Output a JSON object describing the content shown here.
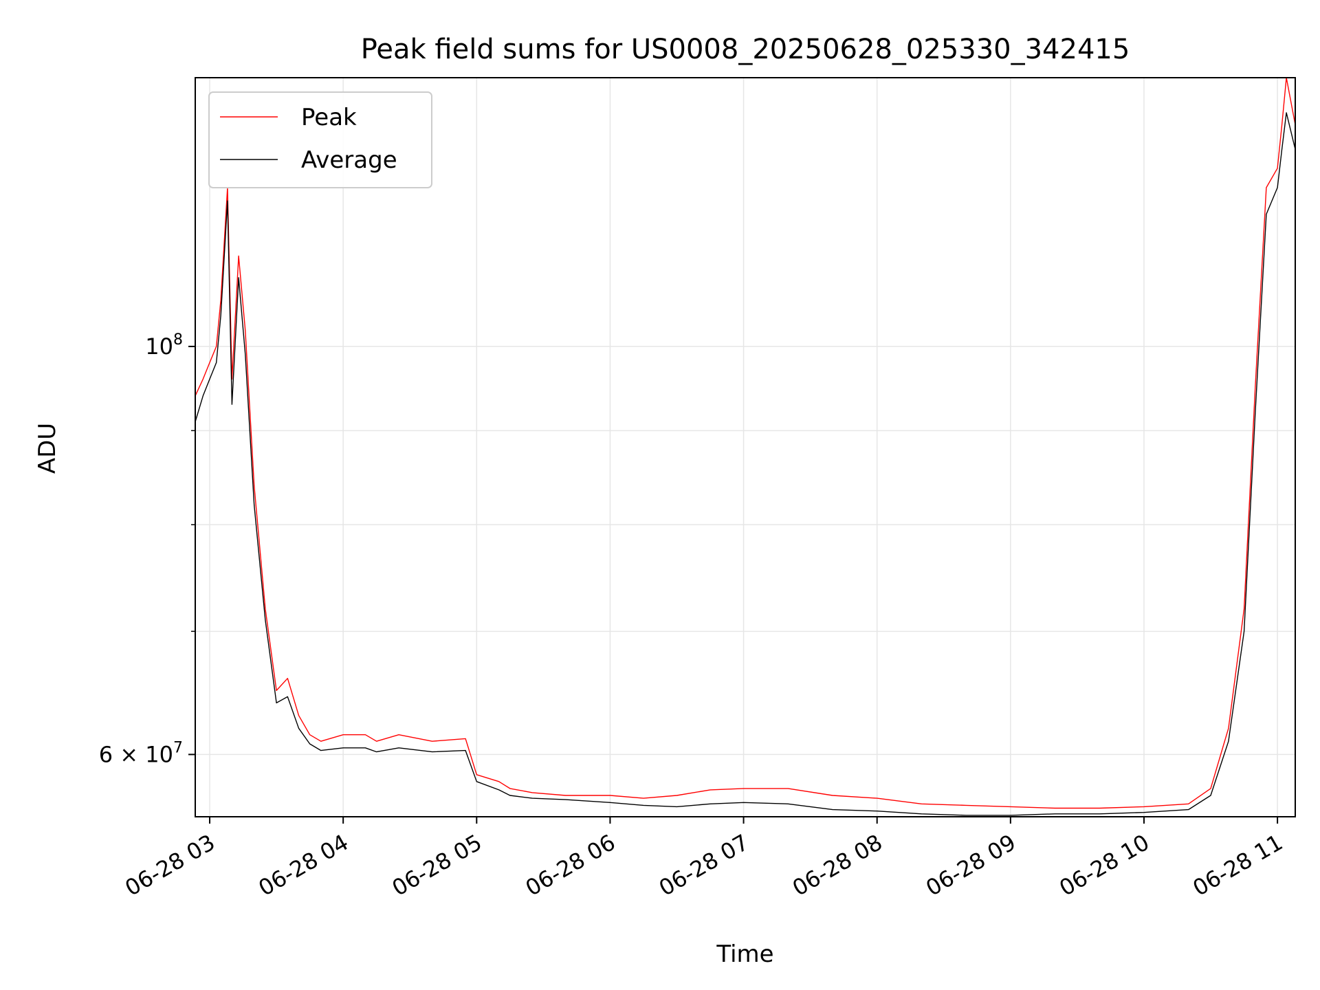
{
  "chart_data": {
    "type": "line",
    "title": "Peak field sums for US0008_20250628_025330_342415",
    "xlabel": "Time",
    "ylabel": "ADU",
    "yscale": "log",
    "ylim": [
      55500000,
      140000000
    ],
    "xlim": [
      "2025-06-28T02:53:30",
      "2025-06-28T11:08:00"
    ],
    "xticks": [
      {
        "t": "2025-06-28T03:00",
        "label": "06-28 03"
      },
      {
        "t": "2025-06-28T04:00",
        "label": "06-28 04"
      },
      {
        "t": "2025-06-28T05:00",
        "label": "06-28 05"
      },
      {
        "t": "2025-06-28T06:00",
        "label": "06-28 06"
      },
      {
        "t": "2025-06-28T07:00",
        "label": "06-28 07"
      },
      {
        "t": "2025-06-28T08:00",
        "label": "06-28 08"
      },
      {
        "t": "2025-06-28T09:00",
        "label": "06-28 09"
      },
      {
        "t": "2025-06-28T10:00",
        "label": "06-28 10"
      },
      {
        "t": "2025-06-28T11:00",
        "label": "06-28 11"
      }
    ],
    "yticks_major": [
      {
        "v": 60000000,
        "label": "6 × 10^7",
        "mantissa": "6 × 10",
        "exp": "7"
      },
      {
        "v": 100000000,
        "label": "10^8",
        "mantissa": "10",
        "exp": "8"
      }
    ],
    "yticks_minor": [
      70000000,
      80000000,
      90000000
    ],
    "grid": true,
    "legend_position": "top-left",
    "series": [
      {
        "name": "Peak",
        "color": "#ff0000",
        "x": [
          "2025-06-28T02:53:30",
          "2025-06-28T02:57:00",
          "2025-06-28T03:00:00",
          "2025-06-28T03:03:00",
          "2025-06-28T03:05:00",
          "2025-06-28T03:08:00",
          "2025-06-28T03:10:00",
          "2025-06-28T03:13:00",
          "2025-06-28T03:16:00",
          "2025-06-28T03:20:00",
          "2025-06-28T03:25:00",
          "2025-06-28T03:30:00",
          "2025-06-28T03:35:00",
          "2025-06-28T03:40:00",
          "2025-06-28T03:45:00",
          "2025-06-28T03:50:00",
          "2025-06-28T04:00:00",
          "2025-06-28T04:10:00",
          "2025-06-28T04:15:00",
          "2025-06-28T04:25:00",
          "2025-06-28T04:40:00",
          "2025-06-28T04:55:00",
          "2025-06-28T05:00:00",
          "2025-06-28T05:10:00",
          "2025-06-28T05:15:00",
          "2025-06-28T05:25:00",
          "2025-06-28T05:40:00",
          "2025-06-28T06:00:00",
          "2025-06-28T06:15:00",
          "2025-06-28T06:30:00",
          "2025-06-28T06:45:00",
          "2025-06-28T07:00:00",
          "2025-06-28T07:20:00",
          "2025-06-28T07:40:00",
          "2025-06-28T08:00:00",
          "2025-06-28T08:20:00",
          "2025-06-28T08:40:00",
          "2025-06-28T09:00:00",
          "2025-06-28T09:20:00",
          "2025-06-28T09:40:00",
          "2025-06-28T10:00:00",
          "2025-06-28T10:20:00",
          "2025-06-28T10:30:00",
          "2025-06-28T10:38:00",
          "2025-06-28T10:45:00",
          "2025-06-28T10:50:00",
          "2025-06-28T10:55:00",
          "2025-06-28T11:00:00",
          "2025-06-28T11:02:00",
          "2025-06-28T11:04:00",
          "2025-06-28T11:08:00"
        ],
        "values": [
          94000000,
          96000000,
          98000000,
          100000000,
          106000000,
          122000000,
          96000000,
          112000000,
          102000000,
          84000000,
          72000000,
          65000000,
          66000000,
          63000000,
          61500000,
          61000000,
          61500000,
          61500000,
          61000000,
          61500000,
          61000000,
          61200000,
          58500000,
          58000000,
          57500000,
          57200000,
          57000000,
          57000000,
          56800000,
          57000000,
          57400000,
          57500000,
          57500000,
          57000000,
          56800000,
          56400000,
          56300000,
          56200000,
          56100000,
          56100000,
          56200000,
          56400000,
          57500000,
          62000000,
          72000000,
          95000000,
          122000000,
          125000000,
          132000000,
          140000000,
          132000000
        ]
      },
      {
        "name": "Average",
        "color": "#000000",
        "x": [
          "2025-06-28T02:53:30",
          "2025-06-28T02:57:00",
          "2025-06-28T03:00:00",
          "2025-06-28T03:03:00",
          "2025-06-28T03:05:00",
          "2025-06-28T03:08:00",
          "2025-06-28T03:10:00",
          "2025-06-28T03:13:00",
          "2025-06-28T03:16:00",
          "2025-06-28T03:20:00",
          "2025-06-28T03:25:00",
          "2025-06-28T03:30:00",
          "2025-06-28T03:35:00",
          "2025-06-28T03:40:00",
          "2025-06-28T03:45:00",
          "2025-06-28T03:50:00",
          "2025-06-28T04:00:00",
          "2025-06-28T04:10:00",
          "2025-06-28T04:15:00",
          "2025-06-28T04:25:00",
          "2025-06-28T04:40:00",
          "2025-06-28T04:55:00",
          "2025-06-28T05:00:00",
          "2025-06-28T05:10:00",
          "2025-06-28T05:15:00",
          "2025-06-28T05:25:00",
          "2025-06-28T05:40:00",
          "2025-06-28T06:00:00",
          "2025-06-28T06:15:00",
          "2025-06-28T06:30:00",
          "2025-06-28T06:45:00",
          "2025-06-28T07:00:00",
          "2025-06-28T07:20:00",
          "2025-06-28T07:40:00",
          "2025-06-28T08:00:00",
          "2025-06-28T08:20:00",
          "2025-06-28T08:40:00",
          "2025-06-28T09:00:00",
          "2025-06-28T09:20:00",
          "2025-06-28T09:40:00",
          "2025-06-28T10:00:00",
          "2025-06-28T10:20:00",
          "2025-06-28T10:30:00",
          "2025-06-28T10:38:00",
          "2025-06-28T10:45:00",
          "2025-06-28T10:50:00",
          "2025-06-28T10:55:00",
          "2025-06-28T11:00:00",
          "2025-06-28T11:02:00",
          "2025-06-28T11:04:00",
          "2025-06-28T11:08:00"
        ],
        "values": [
          91000000,
          94000000,
          96000000,
          98000000,
          104000000,
          120000000,
          93000000,
          109000000,
          99000000,
          82000000,
          71000000,
          64000000,
          64500000,
          62000000,
          60800000,
          60300000,
          60500000,
          60500000,
          60200000,
          60500000,
          60200000,
          60300000,
          58000000,
          57400000,
          57000000,
          56800000,
          56700000,
          56500000,
          56300000,
          56200000,
          56400000,
          56500000,
          56400000,
          56000000,
          55900000,
          55700000,
          55600000,
          55600000,
          55700000,
          55700000,
          55800000,
          56000000,
          57000000,
          61000000,
          70000000,
          92000000,
          118000000,
          122000000,
          128000000,
          134000000,
          128000000
        ]
      }
    ]
  }
}
